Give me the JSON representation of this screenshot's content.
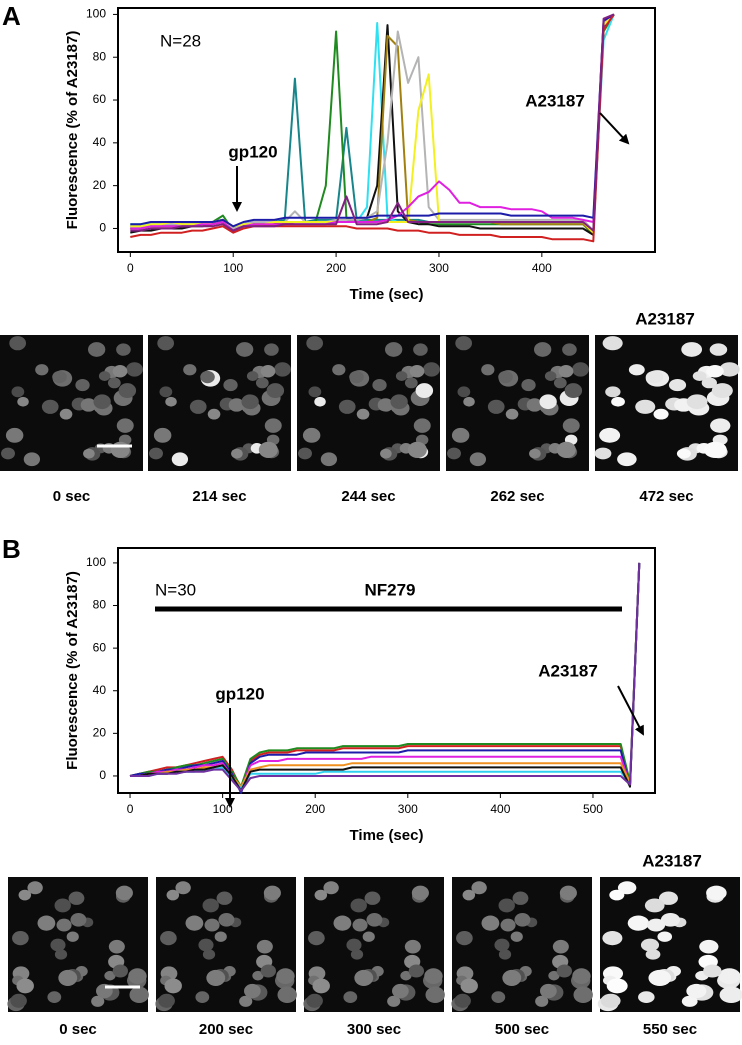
{
  "chart_data": [
    {
      "type": "line",
      "xlabel": "Time (sec)",
      "ylabel": "Fluorescence (% of A23187)",
      "xlim": [
        -12,
        510
      ],
      "ylim": [
        -11,
        103
      ],
      "xticks": [
        0,
        100,
        200,
        300,
        400
      ],
      "yticks": [
        0,
        20,
        40,
        60,
        80,
        100
      ],
      "annotations": [
        "N=28",
        "gp120",
        "A23187"
      ],
      "x": [
        0,
        10,
        20,
        30,
        40,
        50,
        60,
        70,
        80,
        90,
        100,
        110,
        120,
        130,
        140,
        150,
        160,
        170,
        180,
        190,
        200,
        210,
        220,
        230,
        240,
        250,
        260,
        270,
        280,
        290,
        300,
        310,
        320,
        330,
        340,
        350,
        360,
        370,
        380,
        390,
        400,
        410,
        420,
        430,
        440,
        450,
        460,
        470
      ],
      "series": [
        {
          "color": "#17858a",
          "values": [
            1,
            1,
            2,
            2,
            2,
            2,
            2,
            2,
            3,
            4,
            0,
            2,
            3,
            3,
            3,
            4,
            70,
            3,
            4,
            4,
            4,
            47,
            4,
            4,
            4,
            4,
            4,
            4,
            4,
            3,
            3,
            3,
            3,
            3,
            3,
            3,
            3,
            3,
            3,
            3,
            3,
            3,
            3,
            3,
            3,
            -2,
            95,
            100
          ]
        },
        {
          "color": "#1f8a1f",
          "values": [
            0,
            0,
            1,
            1,
            1,
            1,
            1,
            2,
            3,
            6,
            -1,
            1,
            2,
            2,
            2,
            3,
            3,
            3,
            3,
            20,
            92,
            5,
            3,
            3,
            3,
            3,
            3,
            3,
            3,
            2,
            2,
            2,
            2,
            2,
            2,
            2,
            2,
            2,
            2,
            2,
            2,
            2,
            2,
            2,
            2,
            -3,
            92,
            100
          ]
        },
        {
          "color": "#2ee0f0",
          "values": [
            2,
            2,
            2,
            2,
            3,
            3,
            3,
            3,
            3,
            4,
            0,
            2,
            2,
            3,
            3,
            3,
            3,
            3,
            3,
            3,
            3,
            3,
            3,
            10,
            96,
            5,
            3,
            3,
            3,
            3,
            3,
            3,
            3,
            3,
            3,
            3,
            3,
            3,
            3,
            3,
            3,
            3,
            3,
            3,
            3,
            -1,
            88,
            100
          ]
        },
        {
          "color": "#111111",
          "values": [
            -2,
            -1,
            -1,
            0,
            0,
            0,
            1,
            1,
            2,
            3,
            -1,
            1,
            2,
            2,
            2,
            3,
            3,
            3,
            3,
            3,
            3,
            3,
            4,
            5,
            20,
            95,
            8,
            3,
            2,
            2,
            1,
            1,
            1,
            1,
            0,
            0,
            0,
            0,
            0,
            0,
            0,
            0,
            0,
            0,
            0,
            -3,
            94,
            100
          ]
        },
        {
          "color": "#a08010",
          "values": [
            0,
            0,
            1,
            1,
            1,
            1,
            2,
            2,
            2,
            3,
            0,
            1,
            2,
            2,
            2,
            2,
            3,
            3,
            3,
            3,
            3,
            3,
            3,
            3,
            5,
            90,
            85,
            4,
            3,
            3,
            3,
            3,
            3,
            3,
            3,
            3,
            2,
            2,
            2,
            2,
            2,
            2,
            2,
            2,
            2,
            -2,
            95,
            100
          ]
        },
        {
          "color": "#b4b4b4",
          "values": [
            1,
            1,
            1,
            2,
            2,
            2,
            2,
            2,
            3,
            4,
            0,
            2,
            3,
            3,
            3,
            3,
            8,
            3,
            3,
            3,
            4,
            4,
            4,
            5,
            8,
            40,
            92,
            68,
            80,
            10,
            4,
            4,
            4,
            4,
            4,
            4,
            4,
            4,
            4,
            4,
            4,
            4,
            4,
            4,
            4,
            -1,
            96,
            100
          ]
        },
        {
          "color": "#f2f020",
          "values": [
            1,
            1,
            2,
            2,
            3,
            2,
            2,
            2,
            3,
            4,
            1,
            2,
            2,
            2,
            3,
            3,
            3,
            3,
            3,
            3,
            3,
            3,
            3,
            3,
            3,
            3,
            3,
            3,
            55,
            72,
            3,
            3,
            3,
            3,
            3,
            3,
            3,
            3,
            3,
            3,
            3,
            3,
            3,
            3,
            3,
            -2,
            95,
            100
          ]
        },
        {
          "color": "#e020e0",
          "values": [
            0,
            0,
            1,
            1,
            1,
            1,
            1,
            2,
            2,
            3,
            -1,
            1,
            2,
            2,
            2,
            2,
            2,
            2,
            2,
            2,
            3,
            3,
            3,
            3,
            3,
            4,
            6,
            10,
            15,
            17,
            22,
            18,
            12,
            12,
            10,
            10,
            10,
            9,
            9,
            9,
            8,
            5,
            5,
            5,
            4,
            3,
            97,
            100
          ]
        },
        {
          "color": "#1c1ca8",
          "values": [
            2,
            2,
            3,
            3,
            3,
            3,
            3,
            3,
            3,
            4,
            1,
            3,
            4,
            4,
            4,
            5,
            5,
            5,
            5,
            5,
            5,
            5,
            5,
            5,
            6,
            6,
            6,
            6,
            6,
            6,
            7,
            7,
            7,
            7,
            7,
            7,
            7,
            6,
            6,
            6,
            6,
            6,
            6,
            6,
            6,
            5,
            97,
            100
          ]
        },
        {
          "color": "#d02020",
          "values": [
            -4,
            -3,
            -3,
            -2,
            -2,
            -2,
            -1,
            -1,
            0,
            1,
            -2,
            0,
            1,
            1,
            1,
            1,
            1,
            1,
            1,
            1,
            1,
            1,
            0,
            0,
            0,
            0,
            -1,
            -1,
            -1,
            -2,
            -2,
            -2,
            -3,
            -3,
            -3,
            -3,
            -4,
            -4,
            -4,
            -4,
            -4,
            -5,
            -5,
            -5,
            -5,
            -6,
            93,
            100
          ]
        },
        {
          "color": "#802080",
          "values": [
            -1,
            -1,
            0,
            0,
            0,
            1,
            1,
            1,
            1,
            2,
            -1,
            1,
            1,
            1,
            1,
            2,
            2,
            2,
            2,
            2,
            2,
            15,
            2,
            2,
            2,
            3,
            12,
            3,
            3,
            3,
            3,
            3,
            3,
            3,
            3,
            3,
            3,
            3,
            3,
            3,
            3,
            3,
            3,
            3,
            3,
            -1,
            98,
            100
          ]
        }
      ]
    },
    {
      "type": "line",
      "xlabel": "Time (sec)",
      "ylabel": "Fluorescence (% of A23187)",
      "xlim": [
        -13,
        567
      ],
      "ylim": [
        -8,
        107
      ],
      "xticks": [
        0,
        100,
        200,
        300,
        400,
        500
      ],
      "yticks": [
        0,
        20,
        40,
        60,
        80,
        100
      ],
      "annotations": [
        "N=30",
        "NF279",
        "gp120",
        "A23187"
      ],
      "x": [
        0,
        10,
        20,
        30,
        40,
        50,
        60,
        70,
        80,
        90,
        100,
        110,
        120,
        130,
        140,
        150,
        160,
        170,
        180,
        190,
        200,
        210,
        220,
        230,
        240,
        250,
        260,
        270,
        280,
        290,
        300,
        310,
        320,
        330,
        340,
        350,
        360,
        370,
        380,
        390,
        400,
        410,
        420,
        430,
        440,
        450,
        460,
        470,
        480,
        490,
        500,
        510,
        520,
        530,
        540,
        550
      ],
      "series": [
        {
          "color": "#d02020",
          "values": [
            0,
            1,
            2,
            3,
            4,
            4,
            5,
            6,
            7,
            8,
            9,
            3,
            -6,
            7,
            10,
            11,
            11,
            11,
            12,
            12,
            12,
            12,
            12,
            13,
            13,
            13,
            13,
            13,
            13,
            13,
            14,
            14,
            14,
            14,
            14,
            14,
            14,
            14,
            14,
            14,
            14,
            14,
            14,
            14,
            14,
            14,
            14,
            14,
            14,
            14,
            14,
            14,
            14,
            14,
            -4,
            100
          ]
        },
        {
          "color": "#1f8a1f",
          "values": [
            0,
            1,
            2,
            2,
            3,
            4,
            5,
            5,
            6,
            7,
            8,
            2,
            -5,
            8,
            11,
            12,
            12,
            12,
            13,
            13,
            13,
            13,
            13,
            14,
            14,
            14,
            14,
            14,
            14,
            14,
            15,
            15,
            15,
            15,
            15,
            15,
            15,
            15,
            15,
            15,
            15,
            15,
            15,
            15,
            15,
            15,
            15,
            15,
            15,
            15,
            15,
            15,
            15,
            15,
            -3,
            100
          ]
        },
        {
          "color": "#1c1ca8",
          "values": [
            0,
            1,
            1,
            2,
            3,
            3,
            4,
            5,
            5,
            6,
            7,
            1,
            -8,
            6,
            9,
            10,
            10,
            10,
            10,
            11,
            11,
            11,
            11,
            11,
            11,
            11,
            11,
            11,
            11,
            11,
            12,
            12,
            12,
            12,
            12,
            12,
            12,
            12,
            12,
            12,
            12,
            12,
            12,
            12,
            12,
            12,
            12,
            12,
            12,
            12,
            12,
            12,
            12,
            12,
            -5,
            100
          ]
        },
        {
          "color": "#e020e0",
          "values": [
            0,
            0,
            1,
            2,
            2,
            3,
            3,
            4,
            5,
            5,
            6,
            0,
            -6,
            5,
            7,
            7,
            7,
            8,
            8,
            8,
            8,
            8,
            8,
            8,
            8,
            8,
            9,
            9,
            9,
            9,
            9,
            9,
            9,
            9,
            9,
            9,
            9,
            9,
            9,
            9,
            9,
            9,
            9,
            9,
            9,
            9,
            9,
            9,
            9,
            9,
            9,
            9,
            9,
            9,
            -4,
            100
          ]
        },
        {
          "color": "#f09020",
          "values": [
            0,
            0,
            1,
            1,
            2,
            2,
            3,
            3,
            4,
            4,
            5,
            0,
            -5,
            3,
            4,
            5,
            5,
            5,
            5,
            5,
            5,
            5,
            5,
            5,
            6,
            6,
            6,
            6,
            6,
            6,
            6,
            6,
            6,
            6,
            6,
            6,
            6,
            6,
            6,
            6,
            6,
            6,
            6,
            6,
            6,
            6,
            6,
            6,
            6,
            6,
            6,
            6,
            6,
            6,
            -3,
            100
          ]
        },
        {
          "color": "#30d0f0",
          "values": [
            0,
            0,
            0,
            1,
            1,
            2,
            2,
            2,
            3,
            3,
            4,
            -1,
            -6,
            1,
            1,
            1,
            1,
            1,
            1,
            1,
            1,
            2,
            2,
            2,
            2,
            2,
            2,
            2,
            2,
            2,
            2,
            2,
            2,
            2,
            2,
            2,
            2,
            2,
            2,
            2,
            2,
            2,
            2,
            2,
            2,
            2,
            2,
            2,
            2,
            2,
            2,
            2,
            2,
            2,
            -4,
            100
          ]
        },
        {
          "color": "#111111",
          "values": [
            0,
            0,
            1,
            1,
            1,
            2,
            2,
            3,
            3,
            4,
            5,
            0,
            -7,
            2,
            3,
            3,
            3,
            3,
            3,
            3,
            3,
            3,
            3,
            3,
            4,
            4,
            4,
            4,
            4,
            4,
            4,
            4,
            4,
            4,
            4,
            4,
            4,
            4,
            4,
            4,
            4,
            4,
            4,
            4,
            4,
            4,
            4,
            4,
            4,
            4,
            4,
            4,
            4,
            4,
            -5,
            100
          ]
        },
        {
          "color": "#7030a0",
          "values": [
            0,
            0,
            0,
            1,
            1,
            1,
            2,
            2,
            2,
            3,
            3,
            -2,
            -7,
            -1,
            0,
            0,
            0,
            0,
            0,
            0,
            0,
            0,
            0,
            0,
            0,
            0,
            0,
            0,
            0,
            0,
            0,
            0,
            0,
            0,
            0,
            0,
            0,
            0,
            0,
            0,
            0,
            0,
            0,
            0,
            0,
            0,
            0,
            0,
            0,
            0,
            0,
            0,
            0,
            0,
            -4,
            100
          ]
        }
      ]
    }
  ],
  "panels": [
    {
      "label": "A",
      "image_header": "A23187",
      "captions": [
        "0 sec",
        "214 sec",
        "244 sec",
        "262 sec",
        "472 sec"
      ]
    },
    {
      "label": "B",
      "image_header": "A23187",
      "captions": [
        "0 sec",
        "200 sec",
        "300 sec",
        "500 sec",
        "550 sec"
      ]
    }
  ]
}
